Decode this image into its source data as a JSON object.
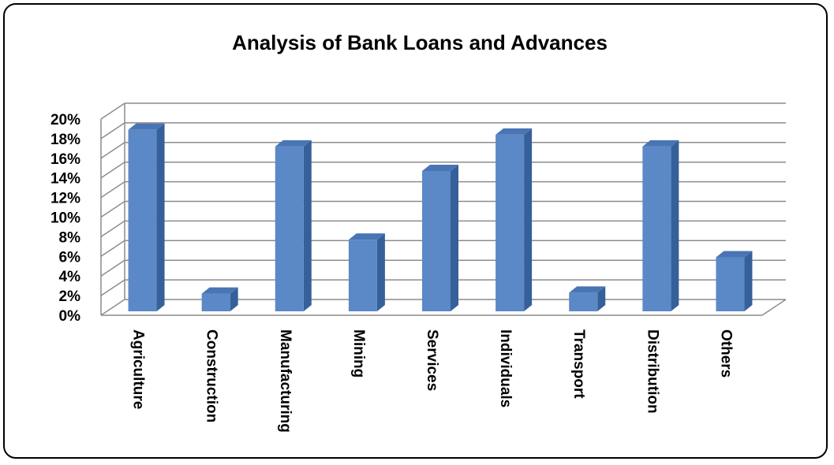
{
  "chart_data": {
    "type": "bar",
    "title": "Analysis of Bank Loans and Advances",
    "categories": [
      "Agriculture",
      "Construction",
      "Manufacturing",
      "Mining",
      "Services",
      "Individuals",
      "Transport",
      "Distribution",
      "Others"
    ],
    "values": [
      18.5,
      1.8,
      16.8,
      7.3,
      14.3,
      18.0,
      1.9,
      16.8,
      5.5
    ],
    "yticks": [
      "0%",
      "2%",
      "4%",
      "6%",
      "8%",
      "10%",
      "12%",
      "14%",
      "16%",
      "18%",
      "20%"
    ],
    "ylim": [
      0,
      20
    ],
    "grid": true,
    "three_d": true,
    "legend": "none",
    "colors": {
      "bar_front": "#5b88c6",
      "bar_side": "#36609a",
      "bar_top": "#4a75b4",
      "grid": "#8c8c8c"
    }
  }
}
